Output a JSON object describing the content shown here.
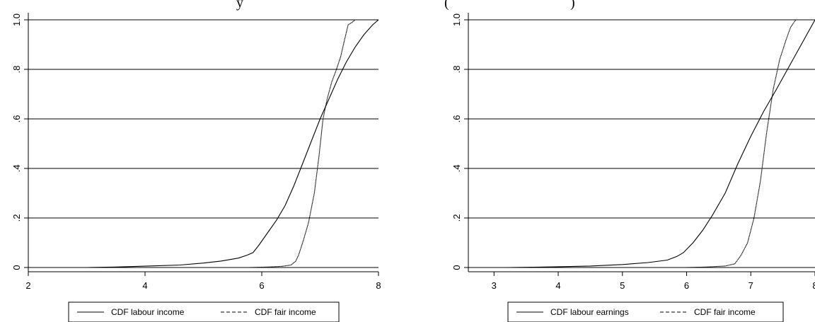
{
  "header": {
    "left_fragment": "y",
    "right_fragment": "(",
    "right_fragment_end": ")"
  },
  "chart_data": [
    {
      "type": "line",
      "title": "",
      "xlabel": "",
      "ylabel": "",
      "xlim": [
        2,
        8
      ],
      "ylim": [
        0,
        1
      ],
      "x_ticks": [
        "2",
        "4",
        "6",
        "8"
      ],
      "y_ticks": [
        "0",
        ".2",
        ".4",
        ".6",
        ".8",
        "1.0"
      ],
      "grid": true,
      "legend_position": "bottom",
      "series": [
        {
          "name": "CDF labour income",
          "style": "solid",
          "x": [
            2.45,
            3.0,
            3.5,
            3.8,
            4.2,
            4.6,
            5.0,
            5.3,
            5.6,
            5.75,
            5.85,
            5.95,
            6.1,
            6.25,
            6.4,
            6.55,
            6.7,
            6.85,
            7.0,
            7.15,
            7.3,
            7.45,
            7.6,
            7.75,
            7.9,
            8.0
          ],
          "values": [
            0.0,
            0.0,
            0.002,
            0.004,
            0.007,
            0.01,
            0.018,
            0.026,
            0.038,
            0.05,
            0.06,
            0.09,
            0.14,
            0.19,
            0.25,
            0.33,
            0.42,
            0.51,
            0.6,
            0.68,
            0.76,
            0.83,
            0.89,
            0.94,
            0.98,
            1.0
          ]
        },
        {
          "name": "CDF fair income",
          "style": "dashed",
          "x": [
            5.5,
            5.8,
            6.1,
            6.35,
            6.5,
            6.58,
            6.63,
            6.7,
            6.8,
            6.9,
            6.98,
            7.05,
            7.12,
            7.2,
            7.28,
            7.35,
            7.42,
            7.48,
            7.55,
            7.6,
            7.65
          ],
          "values": [
            0.0,
            0.0,
            0.002,
            0.005,
            0.01,
            0.025,
            0.05,
            0.1,
            0.18,
            0.3,
            0.45,
            0.6,
            0.68,
            0.75,
            0.8,
            0.85,
            0.92,
            0.98,
            0.99,
            1.0,
            1.0
          ]
        }
      ]
    },
    {
      "type": "line",
      "title": "",
      "xlabel": "",
      "ylabel": "",
      "xlim": [
        2.6,
        8.0
      ],
      "ylim": [
        0,
        1
      ],
      "x_ticks": [
        "3",
        "4",
        "5",
        "6",
        "7",
        "8"
      ],
      "y_ticks": [
        "0",
        ".2",
        ".4",
        ".6",
        ".8",
        "1.0"
      ],
      "grid": true,
      "legend_position": "bottom",
      "series": [
        {
          "name": "CDF labour earnings",
          "style": "solid",
          "x": [
            2.65,
            3.2,
            3.6,
            4.0,
            4.5,
            5.0,
            5.4,
            5.7,
            5.85,
            5.95,
            6.1,
            6.25,
            6.4,
            6.6,
            6.8,
            7.0,
            7.2,
            7.4,
            7.55,
            7.7,
            7.85,
            8.0
          ],
          "values": [
            0.0,
            0.0,
            0.001,
            0.003,
            0.006,
            0.012,
            0.02,
            0.03,
            0.045,
            0.06,
            0.1,
            0.15,
            0.21,
            0.3,
            0.42,
            0.53,
            0.63,
            0.72,
            0.79,
            0.86,
            0.93,
            1.0
          ]
        },
        {
          "name": "CDF fair income",
          "style": "dashed",
          "x": [
            5.6,
            6.0,
            6.3,
            6.6,
            6.75,
            6.85,
            6.95,
            7.05,
            7.15,
            7.25,
            7.35,
            7.45,
            7.55,
            7.62,
            7.7,
            7.76
          ],
          "values": [
            0.0,
            0.0,
            0.002,
            0.006,
            0.015,
            0.05,
            0.1,
            0.2,
            0.35,
            0.55,
            0.72,
            0.84,
            0.92,
            0.97,
            1.0,
            1.0
          ]
        }
      ]
    }
  ]
}
